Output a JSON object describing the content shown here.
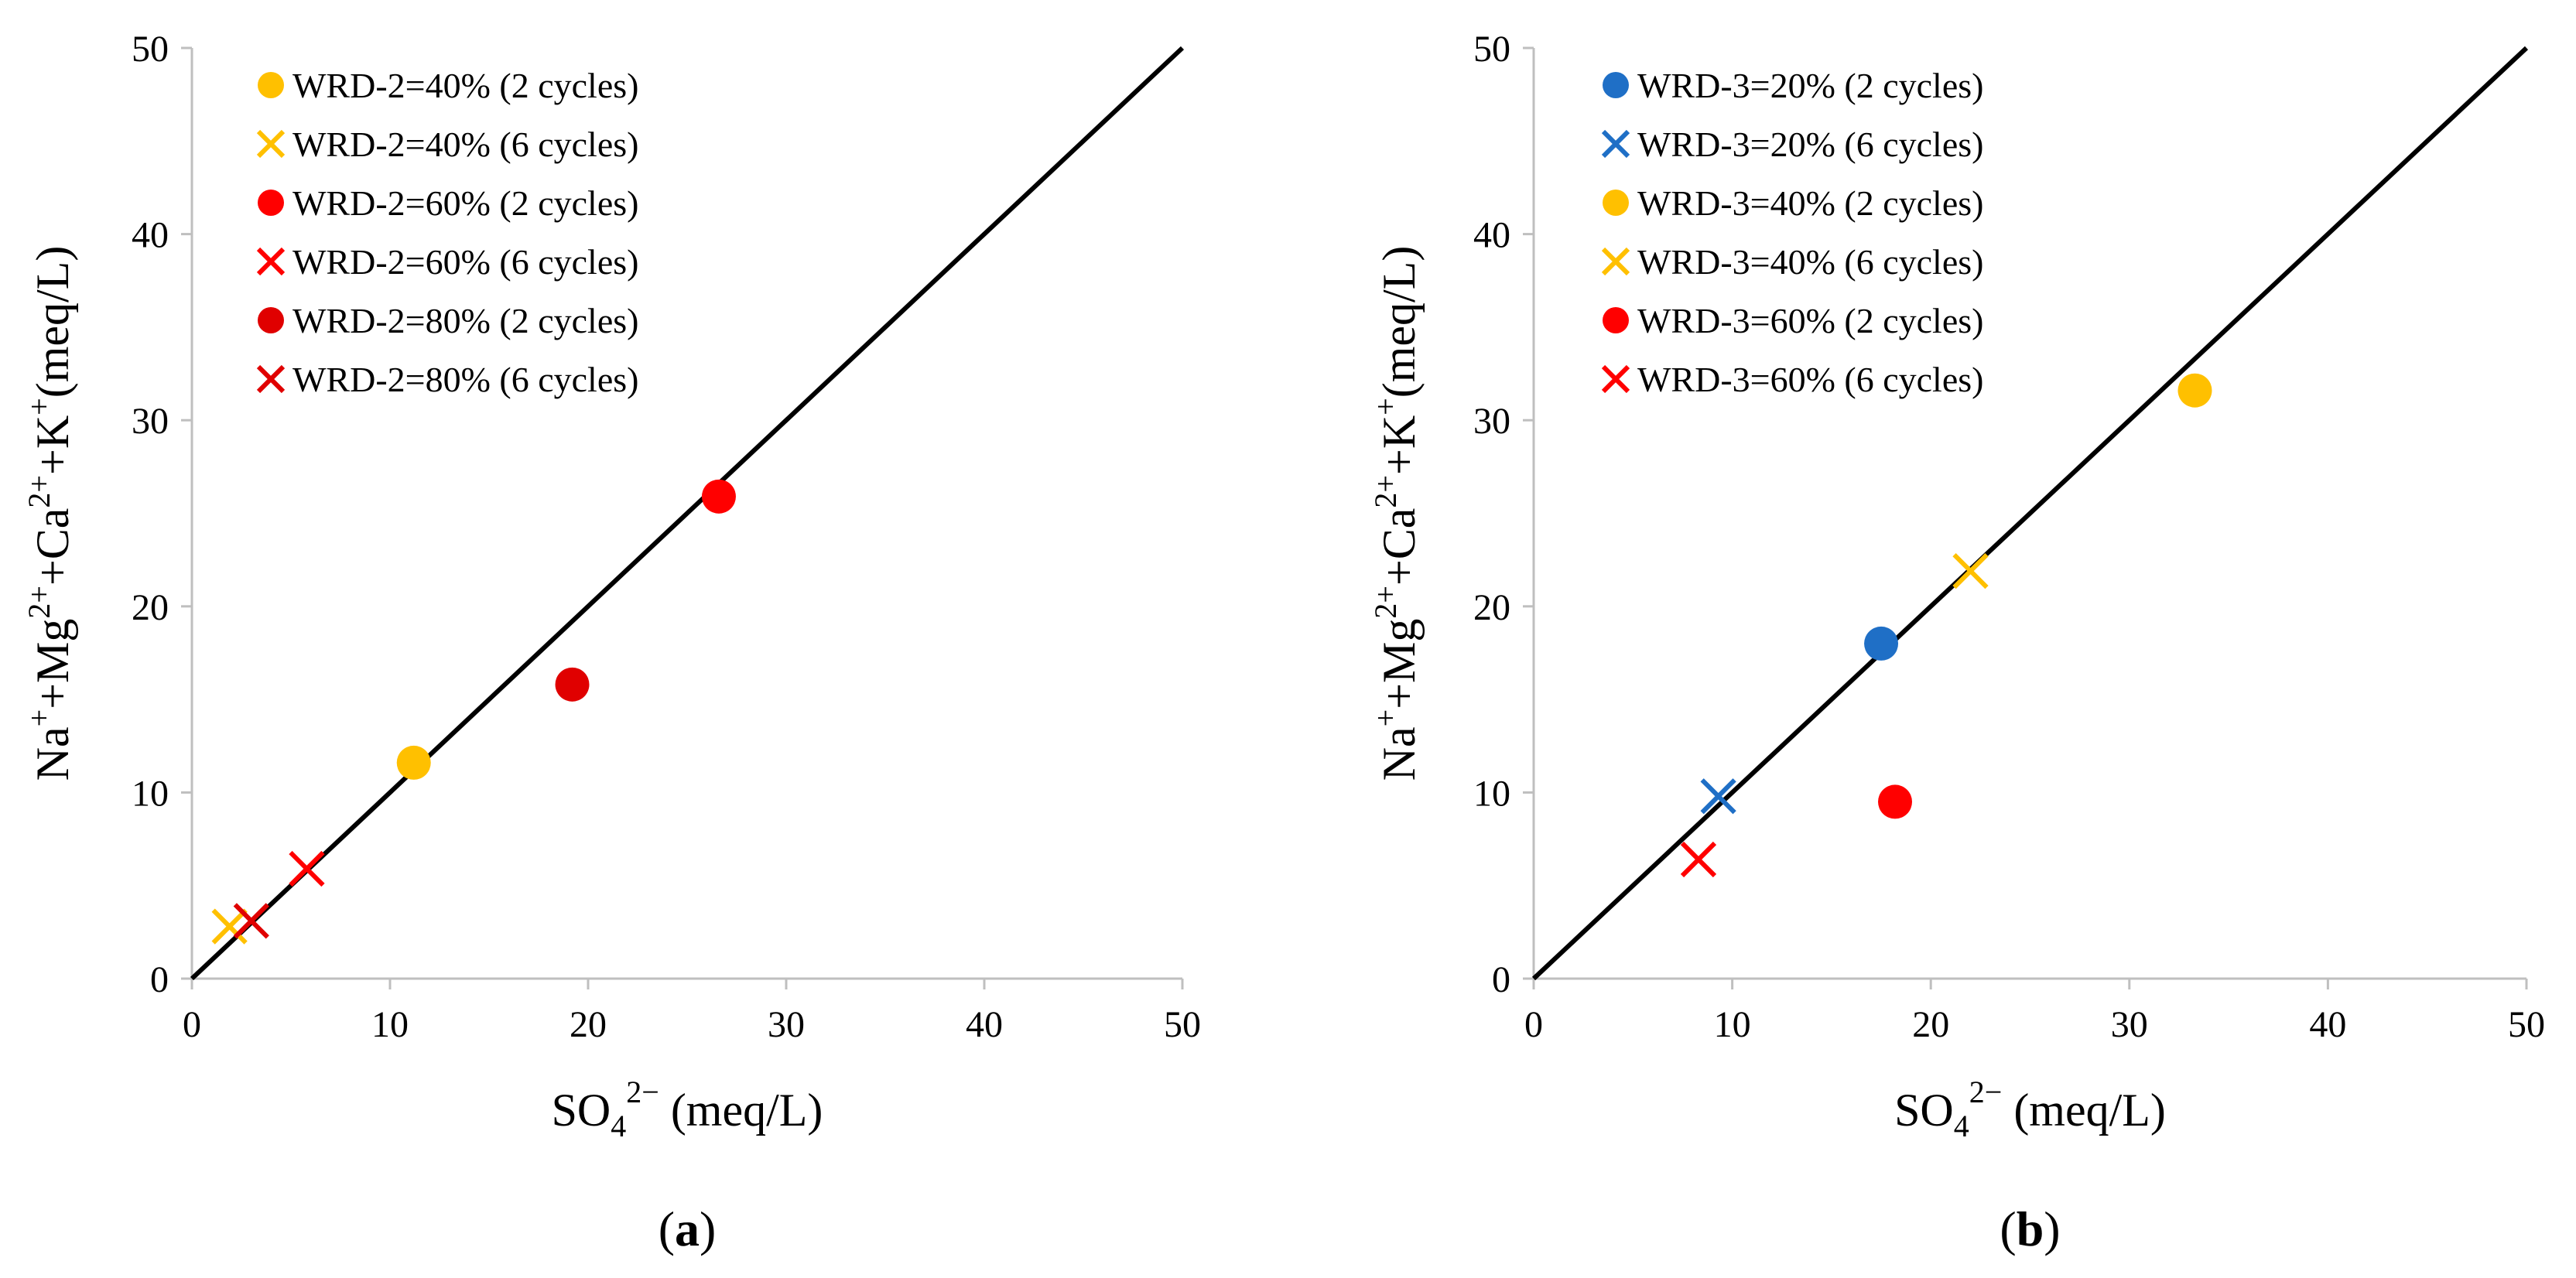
{
  "colors": {
    "yellow": "#FFC000",
    "red": "#FF0000",
    "dark_red": "#E00000",
    "blue": "#1F6FC6",
    "axis": "#BFBFBF",
    "line": "#000000"
  },
  "chart_data": [
    {
      "type": "scatter",
      "panel_label": "a",
      "xlabel": {
        "base": "SO",
        "sub": "4",
        "sup": "2−",
        "tail": " (meq/L)"
      },
      "ylabel": {
        "parts": [
          {
            "t": "Na"
          },
          {
            "t": "+",
            "s": "sup"
          },
          {
            "t": "+Mg"
          },
          {
            "t": "2+",
            "s": "sup"
          },
          {
            "t": "+Ca"
          },
          {
            "t": "2+",
            "s": "sup"
          },
          {
            "t": "+K"
          },
          {
            "t": "+",
            "s": "sup"
          },
          {
            "t": "(meq/L)"
          }
        ]
      },
      "xlim": [
        0,
        50
      ],
      "ylim": [
        0,
        50
      ],
      "xticks": [
        "0",
        "10",
        "20",
        "30",
        "40",
        "50"
      ],
      "yticks": [
        "0",
        "10",
        "20",
        "30",
        "40",
        "50"
      ],
      "reference_line": {
        "x": [
          0,
          50
        ],
        "y": [
          0,
          50
        ]
      },
      "legend_position": "top-left",
      "series": [
        {
          "name": "WRD-2=40% (2 cycles)",
          "marker": "circle",
          "color": "#FFC000",
          "points": [
            [
              11.2,
              11.6
            ]
          ]
        },
        {
          "name": "WRD-2=40% (6 cycles)",
          "marker": "x",
          "color": "#FFC000",
          "points": [
            [
              1.9,
              2.8
            ]
          ]
        },
        {
          "name": "WRD-2=60% (2 cycles)",
          "marker": "circle",
          "color": "#FF0000",
          "points": [
            [
              26.6,
              25.9
            ]
          ]
        },
        {
          "name": "WRD-2=60% (6 cycles)",
          "marker": "x",
          "color": "#FF0000",
          "points": [
            [
              5.8,
              5.9
            ]
          ]
        },
        {
          "name": "WRD-2=80% (2 cycles)",
          "marker": "circle",
          "color": "#E00000",
          "points": [
            [
              19.2,
              15.8
            ]
          ]
        },
        {
          "name": "WRD-2=80% (6 cycles)",
          "marker": "x",
          "color": "#E00000",
          "points": [
            [
              3.0,
              3.1
            ]
          ]
        }
      ]
    },
    {
      "type": "scatter",
      "panel_label": "b",
      "xlabel": {
        "base": "SO",
        "sub": "4",
        "sup": "2−",
        "tail": " (meq/L)"
      },
      "ylabel": {
        "parts": [
          {
            "t": "Na"
          },
          {
            "t": "+",
            "s": "sup"
          },
          {
            "t": "+Mg"
          },
          {
            "t": "2+",
            "s": "sup"
          },
          {
            "t": "+Ca"
          },
          {
            "t": "2+",
            "s": "sup"
          },
          {
            "t": "+K"
          },
          {
            "t": "+",
            "s": "sup"
          },
          {
            "t": "(meq/L)"
          }
        ]
      },
      "xlim": [
        0,
        50
      ],
      "ylim": [
        0,
        50
      ],
      "xticks": [
        "0",
        "10",
        "20",
        "30",
        "40",
        "50"
      ],
      "yticks": [
        "0",
        "10",
        "20",
        "30",
        "40",
        "50"
      ],
      "reference_line": {
        "x": [
          0,
          50
        ],
        "y": [
          0,
          50
        ]
      },
      "legend_position": "top-left",
      "series": [
        {
          "name": "WRD-3=20% (2 cycles)",
          "marker": "circle",
          "color": "#1F6FC6",
          "points": [
            [
              17.5,
              18.0
            ]
          ]
        },
        {
          "name": "WRD-3=20% (6 cycles)",
          "marker": "x",
          "color": "#1F6FC6",
          "points": [
            [
              9.3,
              9.8
            ]
          ]
        },
        {
          "name": "WRD-3=40% (2 cycles)",
          "marker": "circle",
          "color": "#FFC000",
          "points": [
            [
              33.3,
              31.6
            ]
          ]
        },
        {
          "name": "WRD-3=40% (6 cycles)",
          "marker": "x",
          "color": "#FFC000",
          "points": [
            [
              22.0,
              21.9
            ]
          ]
        },
        {
          "name": "WRD-3=60% (2 cycles)",
          "marker": "circle",
          "color": "#FF0000",
          "points": [
            [
              18.2,
              9.5
            ]
          ]
        },
        {
          "name": "WRD-3=60% (6 cycles)",
          "marker": "x",
          "color": "#FF0000",
          "points": [
            [
              8.3,
              6.4
            ]
          ]
        }
      ]
    }
  ]
}
